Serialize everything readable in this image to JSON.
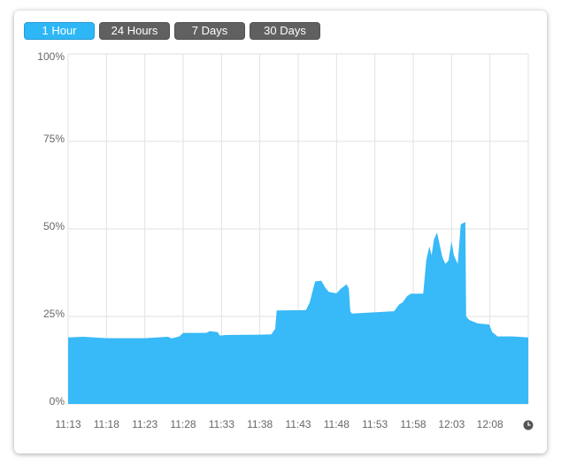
{
  "buttons": [
    "1 Hour",
    "24 Hours",
    "7 Days",
    "30 Days"
  ],
  "chart_data": {
    "type": "area",
    "color": "#38b9f8",
    "grid": true,
    "x": [
      0,
      2,
      5,
      10,
      13,
      13.5,
      14.5,
      15,
      18,
      18.5,
      19.5,
      19.8,
      20.5,
      25,
      26.5,
      27,
      27.2,
      31,
      31.5,
      32.2,
      33,
      33.6,
      34,
      35,
      35.5,
      36.3,
      36.6,
      36.8,
      37,
      42.5,
      43.2,
      43.6,
      44.2,
      44.7,
      46.3,
      46.7,
      47.1,
      47.4,
      47.7,
      48.1,
      48.5,
      48.8,
      49.2,
      49.6,
      50,
      50.3,
      50.8,
      51.2,
      51.8,
      51.9,
      52.3,
      53.4,
      54.9,
      55.3,
      56,
      58,
      60
    ],
    "values": [
      19,
      19.2,
      18.8,
      18.8,
      19.2,
      18.7,
      19.3,
      20.3,
      20.3,
      20.8,
      20.5,
      19.5,
      19.7,
      19.8,
      19.9,
      21.5,
      26.7,
      26.8,
      29,
      35,
      35.2,
      33,
      32,
      31.6,
      32.8,
      34.2,
      33,
      26.5,
      25.8,
      26.5,
      28.5,
      29,
      30.8,
      31.5,
      31.5,
      41,
      45,
      42.5,
      47,
      49,
      45,
      42,
      40,
      41,
      46.5,
      42.5,
      40,
      51.3,
      52,
      25,
      24,
      23,
      22.7,
      20.5,
      19.3,
      19.3,
      19
    ],
    "xlim": [
      0,
      60
    ],
    "xticks": [
      {
        "value": 0,
        "label": "11:13"
      },
      {
        "value": 5,
        "label": "11:18"
      },
      {
        "value": 10,
        "label": "11:23"
      },
      {
        "value": 15,
        "label": "11:28"
      },
      {
        "value": 20,
        "label": "11:33"
      },
      {
        "value": 25,
        "label": "11:38"
      },
      {
        "value": 30,
        "label": "11:43"
      },
      {
        "value": 35,
        "label": "11:48"
      },
      {
        "value": 40,
        "label": "11:53"
      },
      {
        "value": 45,
        "label": "11:58"
      },
      {
        "value": 50,
        "label": "12:03"
      },
      {
        "value": 55,
        "label": "12:08"
      }
    ],
    "ylim": [
      0,
      100
    ],
    "yticks": [
      {
        "value": 0,
        "label": "0%"
      },
      {
        "value": 25,
        "label": "25%"
      },
      {
        "value": 50,
        "label": "50%"
      },
      {
        "value": 75,
        "label": "75%"
      },
      {
        "value": 100,
        "label": "100%"
      }
    ]
  }
}
